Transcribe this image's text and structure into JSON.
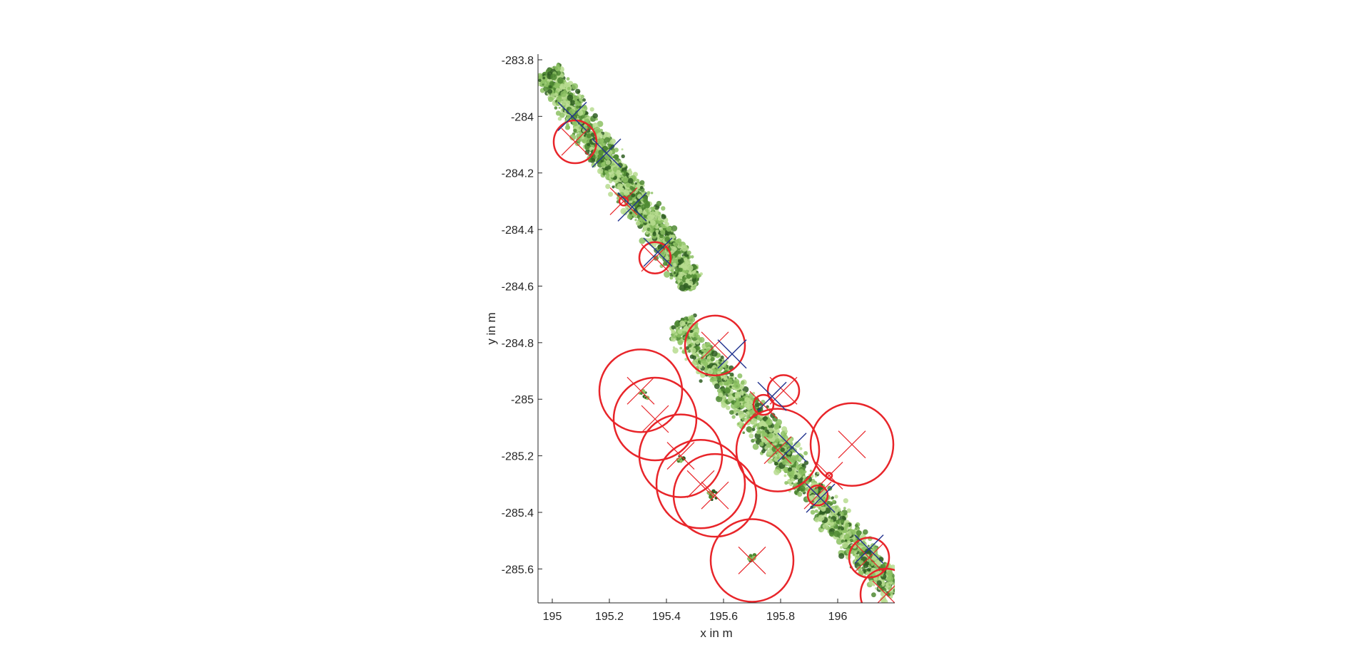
{
  "chart_data": {
    "type": "scatter",
    "title": "",
    "xlabel": "x in m",
    "ylabel": "y in m",
    "xlim": [
      194.95,
      196.2
    ],
    "ylim": [
      -285.72,
      -283.78
    ],
    "y_reversed": true,
    "xticks": [
      "195",
      "195.2",
      "195.4",
      "195.6",
      "195.8",
      "196"
    ],
    "yticks": [
      "-283.8",
      "-284",
      "-284.2",
      "-284.4",
      "-284.6",
      "-284.8",
      "-285",
      "-285.2",
      "-285.4",
      "-285.6"
    ],
    "grid": false,
    "legend": "none",
    "colors": {
      "foliage_light": "#b7dc8f",
      "foliage_mid": "#8cc163",
      "foliage_dark": "#4f8a33",
      "foliage_darkest": "#2f5e22",
      "detected_marker": "#e8252a",
      "reference_marker": "#22338f"
    },
    "foliage_bands": [
      {
        "x0": 194.98,
        "y0": -283.84,
        "x1": 195.5,
        "y1": -284.6,
        "halfwidth": 0.07
      },
      {
        "x0": 195.44,
        "y0": -284.73,
        "x1": 196.2,
        "y1": -285.69,
        "halfwidth": 0.075
      }
    ],
    "foliage_clumps": [
      {
        "x": 195.32,
        "y": -284.98,
        "r": 0.015
      },
      {
        "x": 195.45,
        "y": -285.21,
        "r": 0.012
      },
      {
        "x": 195.56,
        "y": -285.34,
        "r": 0.015
      },
      {
        "x": 195.7,
        "y": -285.56,
        "r": 0.01
      }
    ],
    "detected_trees": [
      {
        "x": 195.08,
        "y": -284.09,
        "r": 0.075
      },
      {
        "x": 195.25,
        "y": -284.3,
        "r": 0.015
      },
      {
        "x": 195.36,
        "y": -284.5,
        "r": 0.055
      },
      {
        "x": 195.57,
        "y": -284.81,
        "r": 0.105
      },
      {
        "x": 195.31,
        "y": -284.97,
        "r": 0.145
      },
      {
        "x": 195.36,
        "y": -285.07,
        "r": 0.145
      },
      {
        "x": 195.45,
        "y": -285.2,
        "r": 0.145
      },
      {
        "x": 195.52,
        "y": -285.3,
        "r": 0.155
      },
      {
        "x": 195.57,
        "y": -285.34,
        "r": 0.145
      },
      {
        "x": 195.81,
        "y": -284.97,
        "r": 0.055
      },
      {
        "x": 195.74,
        "y": -285.02,
        "r": 0.035
      },
      {
        "x": 195.79,
        "y": -285.18,
        "r": 0.145
      },
      {
        "x": 196.05,
        "y": -285.16,
        "r": 0.145
      },
      {
        "x": 195.97,
        "y": -285.27,
        "r": 0.01
      },
      {
        "x": 195.93,
        "y": -285.34,
        "r": 0.035
      },
      {
        "x": 196.11,
        "y": -285.56,
        "r": 0.07
      },
      {
        "x": 196.17,
        "y": -285.69,
        "r": 0.09
      },
      {
        "x": 195.7,
        "y": -285.57,
        "r": 0.145
      }
    ],
    "reference_trees": [
      {
        "x": 195.07,
        "y": -284.0
      },
      {
        "x": 195.19,
        "y": -284.13
      },
      {
        "x": 195.28,
        "y": -284.32
      },
      {
        "x": 195.37,
        "y": -284.48
      },
      {
        "x": 195.63,
        "y": -284.84
      },
      {
        "x": 195.77,
        "y": -284.99
      },
      {
        "x": 195.84,
        "y": -285.17
      },
      {
        "x": 195.94,
        "y": -285.35
      },
      {
        "x": 196.11,
        "y": -285.53
      }
    ]
  }
}
